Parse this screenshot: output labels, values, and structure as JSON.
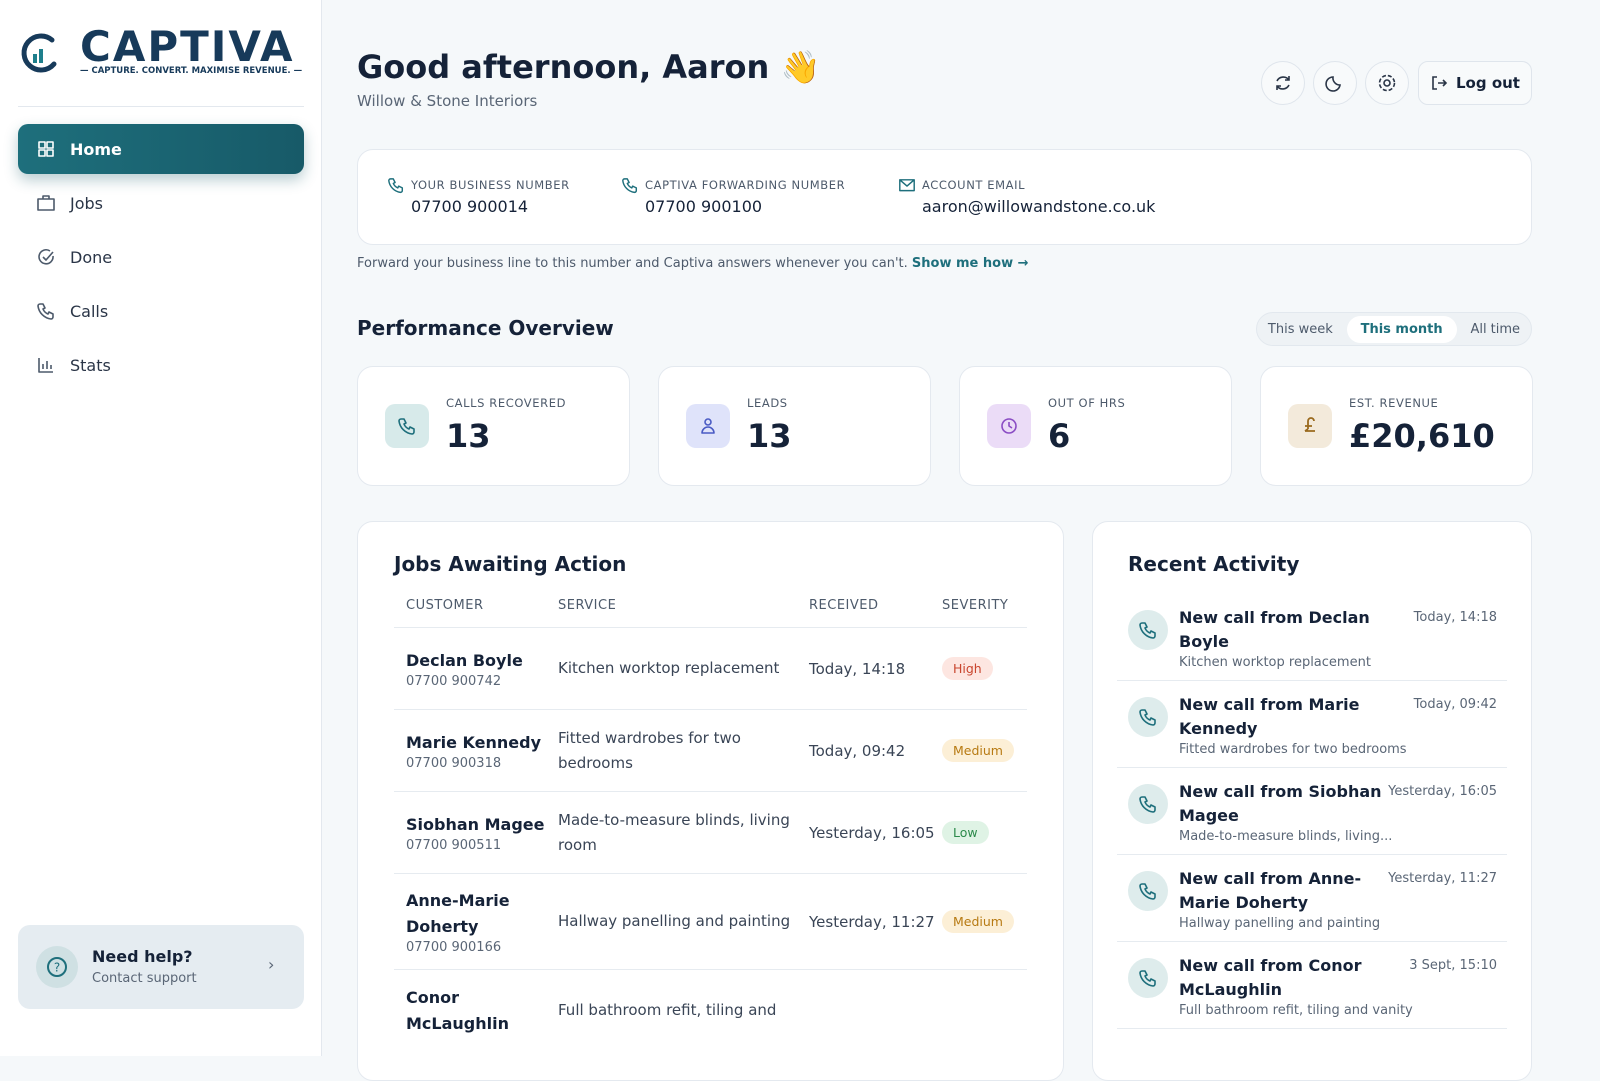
{
  "sidebar": {
    "brand": "CAPTIVA",
    "tagline": "— CAPTURE. CONVERT. MAXIMISE REVENUE. —",
    "nav": [
      "Home",
      "Jobs",
      "Done",
      "Calls",
      "Stats"
    ],
    "help": {
      "title": "Need help?",
      "subtitle": "Contact support"
    }
  },
  "header": {
    "greeting": "Good afternoon, Aaron 👋",
    "company": "Willow & Stone Interiors",
    "logout": "Log out"
  },
  "numbers": [
    {
      "label": "YOUR BUSINESS NUMBER",
      "value": "07700 900014"
    },
    {
      "label": "CAPTIVA FORWARDING NUMBER",
      "value": "07700 900100"
    },
    {
      "label": "ACCOUNT EMAIL",
      "value": "aaron@willowandstone.co.uk"
    }
  ],
  "forward_note": "Forward your business line to this number and Captiva answers whenever you can't.",
  "forward_link": "Show me how →",
  "performance": {
    "title": "Performance Overview",
    "periods": [
      "This week",
      "This month",
      "All time"
    ],
    "stats": [
      {
        "label": "CALLS RECOVERED",
        "value": 13
      },
      {
        "label": "LEADS",
        "value": 13
      },
      {
        "label": "OUT OF HRS",
        "value": 6
      },
      {
        "label": "EST. REVENUE",
        "value": "£20,610"
      }
    ]
  },
  "jobs": {
    "title": "Jobs Awaiting Action",
    "columns": [
      "CUSTOMER",
      "SERVICE",
      "RECEIVED",
      "SEVERITY"
    ],
    "rows": [
      {
        "customer": "Declan Boyle",
        "phone": "07700 900742",
        "service": "Kitchen worktop replacement",
        "received": "Today, 14:18",
        "severity": "High"
      },
      {
        "customer": "Marie Kennedy",
        "phone": "07700 900318",
        "service": "Fitted wardrobes for two bedrooms",
        "received": "Today, 09:42",
        "severity": "Medium"
      },
      {
        "customer": "Siobhan Magee",
        "phone": "07700 900511",
        "service": "Made-to-measure blinds, living room",
        "received": "Yesterday, 16:05",
        "severity": "Low"
      },
      {
        "customer": "Anne-Marie Doherty",
        "phone": "07700 900166",
        "service": "Hallway panelling and painting",
        "received": "Yesterday, 11:27",
        "severity": "Medium"
      },
      {
        "customer": "Conor McLaughlin",
        "service": "Full bathroom refit, tiling and"
      }
    ]
  },
  "activity": {
    "title": "Recent Activity",
    "items": [
      {
        "title": "New call from Declan Boyle",
        "detail": "Kitchen worktop replacement",
        "time": "Today, 14:18"
      },
      {
        "title": "New call from Marie Kennedy",
        "detail": "Fitted wardrobes for two bedrooms",
        "time": "Today, 09:42"
      },
      {
        "title": "New call from Siobhan Magee",
        "detail": "Made-to-measure blinds, living...",
        "time": "Yesterday, 16:05"
      },
      {
        "title": "New call from Anne-Marie Doherty",
        "detail": "Hallway panelling and painting",
        "time": "Yesterday, 11:27"
      },
      {
        "title": "New call from Conor McLaughlin",
        "detail": "Full bathroom refit, tiling and vanity",
        "time": "3 Sept, 15:10"
      }
    ]
  }
}
